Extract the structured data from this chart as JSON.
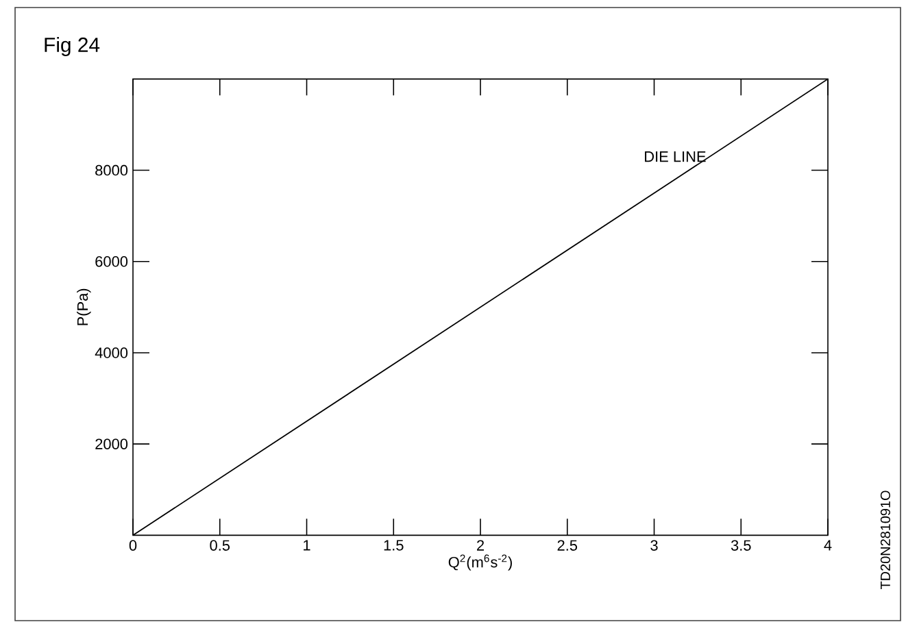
{
  "chart_data": {
    "type": "line",
    "title": "Fig 24",
    "xlabel": "Q$^{2}$(m$^{6}$s$^{-2}$)",
    "ylabel": "P(Pa)",
    "x": [
      0,
      4
    ],
    "series": [
      {
        "name": "DIE LINE",
        "color": "#000000",
        "values": [
          0,
          10000
        ]
      }
    ],
    "xlim": [
      0,
      4
    ],
    "ylim": [
      0,
      10000
    ],
    "xticks": [
      0,
      0.5,
      1,
      1.5,
      2,
      2.5,
      3,
      3.5,
      4
    ],
    "yticks": [
      2000,
      4000,
      6000,
      8000
    ],
    "grid": false,
    "legend": false,
    "marker": "none",
    "line_style": "solid",
    "annotations": [
      "TD20N281091O"
    ]
  }
}
